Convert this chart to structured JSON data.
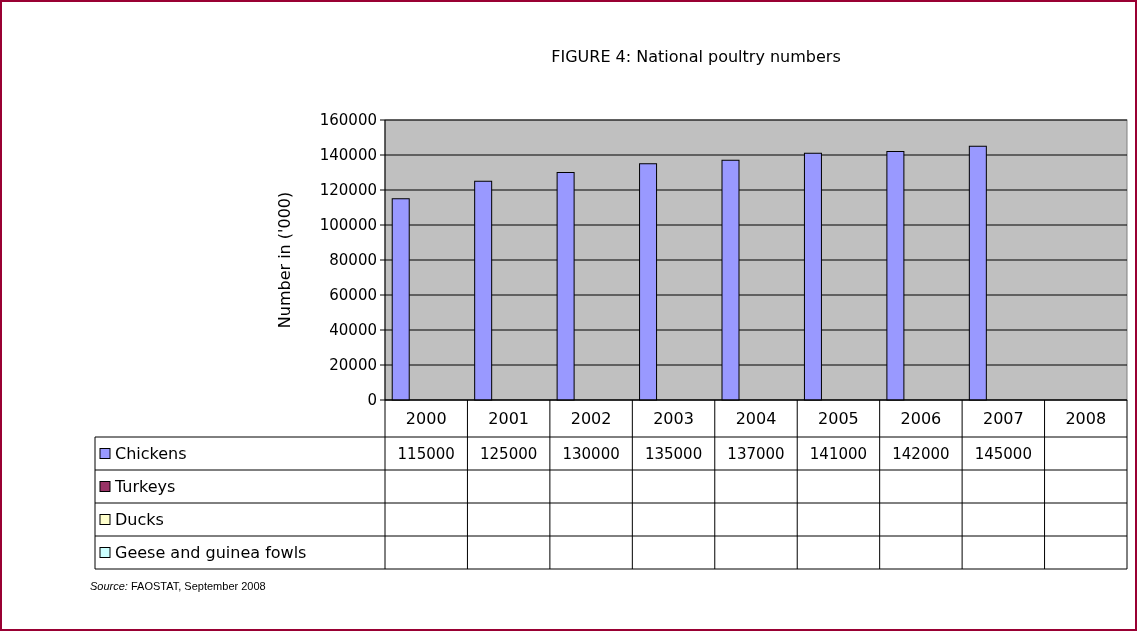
{
  "chart_data": {
    "type": "bar",
    "title": "FIGURE 4: National poultry numbers",
    "ylabel": "Number in ('000)",
    "categories": [
      "2000",
      "2001",
      "2002",
      "2003",
      "2004",
      "2005",
      "2006",
      "2007",
      "2008"
    ],
    "series": [
      {
        "name": "Chickens",
        "color": "#9999ff",
        "values": [
          115000,
          125000,
          130000,
          135000,
          137000,
          141000,
          142000,
          145000,
          null
        ]
      },
      {
        "name": "Turkeys",
        "color": "#993366",
        "values": [
          null,
          null,
          null,
          null,
          null,
          null,
          null,
          null,
          null
        ]
      },
      {
        "name": "Ducks",
        "color": "#ffffcc",
        "values": [
          null,
          null,
          null,
          null,
          null,
          null,
          null,
          null,
          null
        ]
      },
      {
        "name": "Geese and guinea fowls",
        "color": "#ccffff",
        "values": [
          null,
          null,
          null,
          null,
          null,
          null,
          null,
          null,
          null
        ]
      }
    ],
    "ylim": [
      0,
      160000
    ],
    "yticks": [
      0,
      20000,
      40000,
      60000,
      80000,
      100000,
      120000,
      140000,
      160000
    ],
    "grid": "y",
    "legend": "bottom",
    "data_labels": true,
    "annotations": [
      "Source:  FAOSTAT, September 2008"
    ]
  }
}
